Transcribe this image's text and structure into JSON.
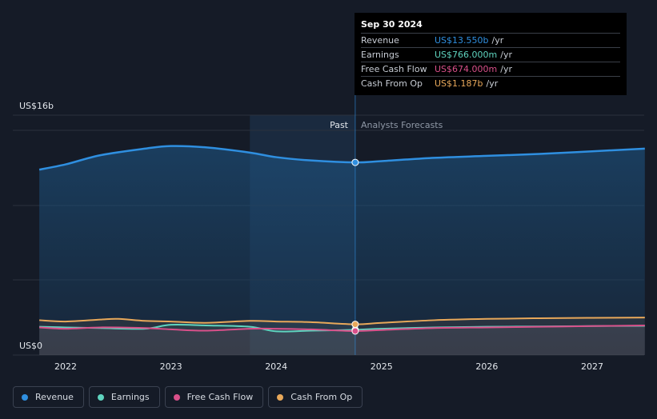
{
  "chart_data": {
    "type": "area",
    "ylabel_top": "US$16b",
    "ylabel_bottom": "US$0",
    "ylim": [
      0,
      16
    ],
    "x_ticks": [
      "2022",
      "2023",
      "2024",
      "2025",
      "2026",
      "2027"
    ],
    "past_label": "Past",
    "forecast_label": "Analysts Forecasts",
    "divider_x": 2024.75,
    "series": [
      {
        "name": "Revenue",
        "color": "#2f8fe0",
        "x": [
          2021.75,
          2022.0,
          2022.33,
          2022.75,
          2023.0,
          2023.33,
          2023.75,
          2024.0,
          2024.33,
          2024.75,
          2025.0,
          2025.5,
          2026.0,
          2026.5,
          2027.0,
          2027.5
        ],
        "y": [
          13.0,
          13.4,
          14.1,
          14.6,
          14.8,
          14.7,
          14.3,
          13.95,
          13.7,
          13.55,
          13.65,
          13.9,
          14.05,
          14.2,
          14.4,
          14.6
        ]
      },
      {
        "name": "Earnings",
        "color": "#5fd4bf",
        "x": [
          2021.75,
          2022.0,
          2022.33,
          2022.75,
          2023.0,
          2023.33,
          2023.75,
          2024.0,
          2024.33,
          2024.75,
          2025.0,
          2025.5,
          2026.0,
          2026.5,
          2027.0,
          2027.5
        ],
        "y": [
          1.0,
          0.95,
          0.9,
          0.85,
          1.15,
          1.1,
          1.0,
          0.65,
          0.7,
          0.766,
          0.85,
          0.95,
          1.0,
          1.02,
          1.05,
          1.07
        ]
      },
      {
        "name": "Free Cash Flow",
        "color": "#d9508a",
        "x": [
          2021.75,
          2022.0,
          2022.33,
          2022.75,
          2023.0,
          2023.33,
          2023.75,
          2024.0,
          2024.33,
          2024.75,
          2025.0,
          2025.5,
          2026.0,
          2026.5,
          2027.0,
          2027.5
        ],
        "y": [
          0.95,
          0.85,
          0.95,
          0.9,
          0.8,
          0.7,
          0.85,
          0.85,
          0.8,
          0.674,
          0.75,
          0.9,
          0.95,
          1.0,
          1.05,
          1.1
        ]
      },
      {
        "name": "Cash From Op",
        "color": "#e8a85a",
        "x": [
          2021.75,
          2022.0,
          2022.33,
          2022.5,
          2022.75,
          2023.0,
          2023.33,
          2023.75,
          2024.0,
          2024.33,
          2024.75,
          2025.0,
          2025.5,
          2026.0,
          2026.5,
          2027.0,
          2027.5
        ],
        "y": [
          1.5,
          1.4,
          1.55,
          1.6,
          1.45,
          1.4,
          1.3,
          1.45,
          1.4,
          1.35,
          1.187,
          1.3,
          1.5,
          1.6,
          1.65,
          1.68,
          1.7
        ]
      }
    ],
    "legend": [
      "Revenue",
      "Earnings",
      "Free Cash Flow",
      "Cash From Op"
    ],
    "legend_placement": "bottom-left"
  },
  "tooltip": {
    "date": "Sep 30 2024",
    "rows": [
      {
        "label": "Revenue",
        "value": "US$13.550b",
        "unit": "/yr",
        "color": "#2f8fe0"
      },
      {
        "label": "Earnings",
        "value": "US$766.000m",
        "unit": "/yr",
        "color": "#5fd4bf"
      },
      {
        "label": "Free Cash Flow",
        "value": "US$674.000m",
        "unit": "/yr",
        "color": "#d9508a"
      },
      {
        "label": "Cash From Op",
        "value": "US$1.187b",
        "unit": "/yr",
        "color": "#e8a85a"
      }
    ]
  }
}
